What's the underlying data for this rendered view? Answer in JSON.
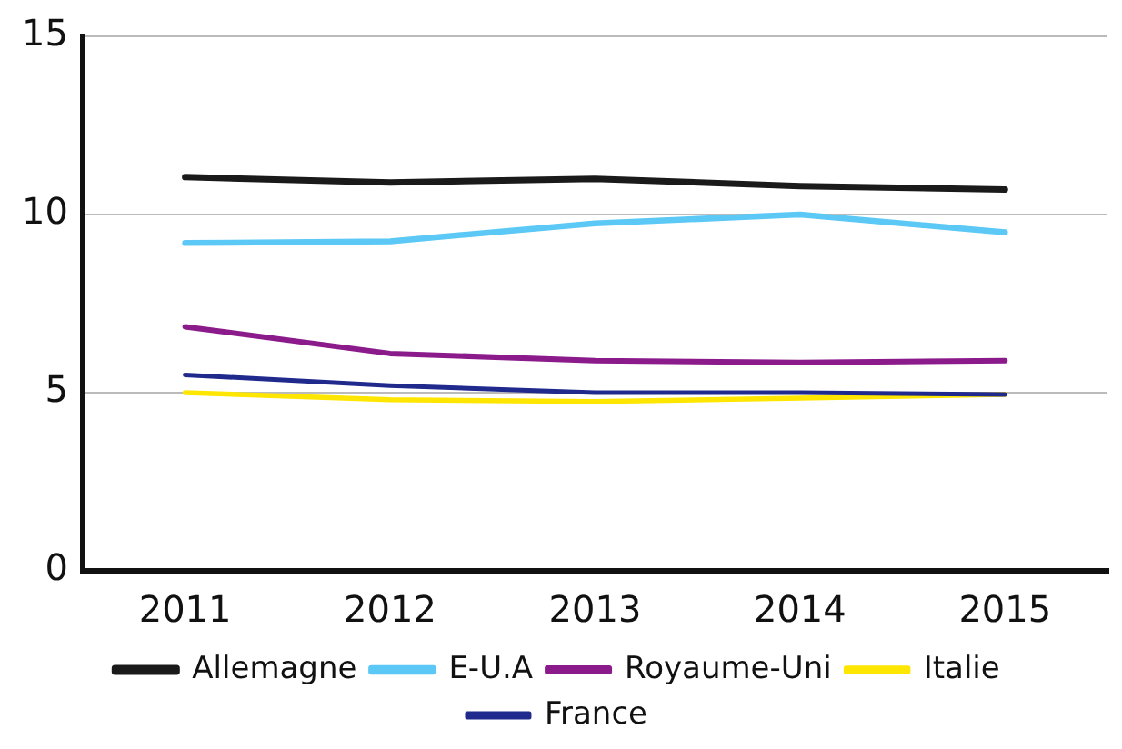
{
  "chart_data": {
    "type": "line",
    "categories": [
      "2011",
      "2012",
      "2013",
      "2014",
      "2015"
    ],
    "series": [
      {
        "name": "Allemagne",
        "color": "#1a1a1a",
        "values": [
          11.05,
          10.9,
          11.0,
          10.8,
          10.7
        ]
      },
      {
        "name": "E-U.A",
        "color": "#5bc8f5",
        "values": [
          9.2,
          9.25,
          9.75,
          10.0,
          9.5
        ]
      },
      {
        "name": "Royaume-Uni",
        "color": "#8b1a8b",
        "values": [
          6.85,
          6.1,
          5.9,
          5.85,
          5.9
        ]
      },
      {
        "name": "Italie",
        "color": "#ffe600",
        "values": [
          5.0,
          4.8,
          4.75,
          4.85,
          4.95
        ]
      },
      {
        "name": "France",
        "color": "#1f2a8c",
        "values": [
          5.5,
          5.2,
          5.0,
          5.0,
          4.95
        ]
      }
    ],
    "ylim": [
      0,
      15
    ],
    "yticks": [
      0,
      5,
      10,
      15
    ],
    "grid": "y",
    "legend": "bottom",
    "marker": "none",
    "line_style": "solid"
  }
}
